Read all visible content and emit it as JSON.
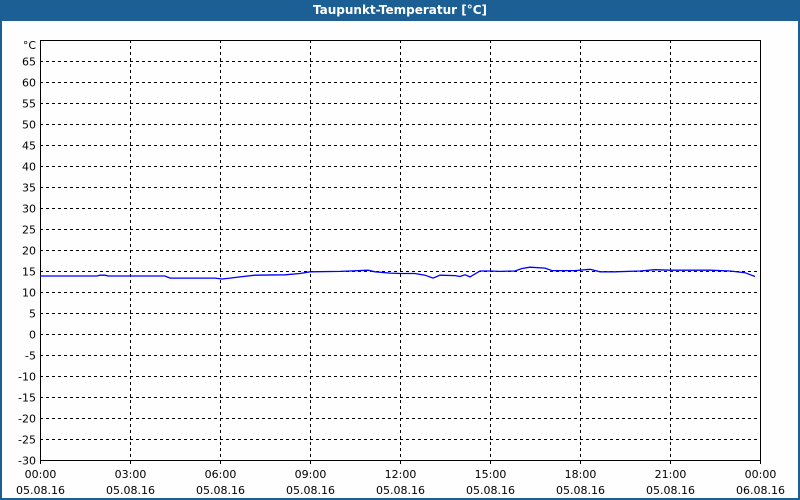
{
  "window": {
    "title": "Taupunkt-Temperatur [°C]"
  },
  "chart_data": {
    "type": "line",
    "title": "Taupunkt-Temperatur [°C]",
    "ylabel": "°C",
    "ylim": [
      -30,
      70
    ],
    "yticks": [
      65,
      60,
      55,
      50,
      45,
      40,
      35,
      30,
      25,
      20,
      15,
      10,
      5,
      0,
      -5,
      -10,
      -15,
      -20,
      -25,
      -30
    ],
    "xlim": [
      "05.08.16 00:00",
      "06.08.16 00:00"
    ],
    "xticks": [
      {
        "time": "00:00",
        "date": "05.08.16"
      },
      {
        "time": "03:00",
        "date": "05.08.16"
      },
      {
        "time": "06:00",
        "date": "05.08.16"
      },
      {
        "time": "09:00",
        "date": "05.08.16"
      },
      {
        "time": "12:00",
        "date": "05.08.16"
      },
      {
        "time": "15:00",
        "date": "05.08.16"
      },
      {
        "time": "18:00",
        "date": "05.08.16"
      },
      {
        "time": "21:00",
        "date": "05.08.16"
      },
      {
        "time": "00:00",
        "date": "06.08.16"
      }
    ],
    "grid": true,
    "line_color": "#0000ff",
    "series": [
      {
        "x": [
          "00:00",
          "01:54",
          "02:00",
          "02:10",
          "02:16",
          "04:10",
          "04:20",
          "05:50",
          "06:04",
          "06:20",
          "06:40",
          "07:10",
          "08:10",
          "08:40",
          "09:00",
          "10:00",
          "10:20",
          "10:56",
          "11:10",
          "11:40",
          "12:00",
          "12:30",
          "12:50",
          "13:06",
          "13:20",
          "13:50",
          "14:00",
          "14:10",
          "14:20",
          "14:40",
          "15:00",
          "15:20",
          "15:50",
          "16:04",
          "16:20",
          "16:50",
          "17:04",
          "17:50",
          "18:20",
          "18:40",
          "19:10",
          "20:00",
          "20:30",
          "21:00",
          "22:20",
          "23:00",
          "23:30",
          "23:50"
        ],
        "y": [
          13.8,
          13.8,
          14.0,
          14.0,
          13.8,
          13.8,
          13.3,
          13.3,
          13.1,
          13.3,
          13.6,
          14.0,
          14.1,
          14.4,
          14.8,
          14.9,
          15.0,
          15.2,
          14.8,
          14.5,
          14.4,
          14.4,
          14.0,
          13.3,
          14.0,
          13.9,
          13.7,
          14.1,
          13.6,
          15.0,
          15.0,
          14.9,
          15.0,
          15.6,
          15.9,
          15.7,
          15.1,
          15.1,
          15.4,
          14.8,
          14.8,
          15.0,
          15.3,
          15.2,
          15.2,
          15.0,
          14.6,
          13.7
        ]
      }
    ]
  }
}
